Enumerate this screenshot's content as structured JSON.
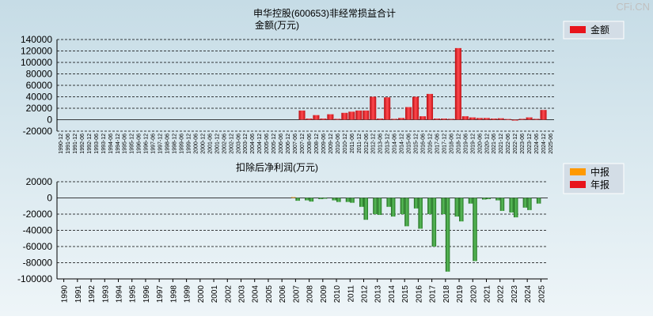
{
  "watermark": "CFi.CN",
  "colors": {
    "red": "#e8141c",
    "green": "#2e8b2e",
    "orange": "#ff9900"
  },
  "chart_data": [
    {
      "type": "bar",
      "title": "申华控股(600653)非经常损益合计",
      "ylabel": "金额(万元)",
      "ylim": [
        -20000,
        140000
      ],
      "yticks": [
        "140000",
        "120000",
        "100000",
        "80000",
        "60000",
        "40000",
        "20000",
        "0",
        "-20000"
      ],
      "legend": [
        {
          "name": "金额",
          "color": "#e8141c"
        }
      ],
      "categories": [
        "1990-12",
        "1991-06",
        "1991-12",
        "1992-06",
        "1992-12",
        "1993-06",
        "1993-12",
        "1994-06",
        "1994-12",
        "1995-06",
        "1995-12",
        "1996-06",
        "1996-12",
        "1997-06",
        "1997-12",
        "1998-06",
        "1998-12",
        "1999-06",
        "1999-12",
        "2000-06",
        "2000-12",
        "2001-06",
        "2001-12",
        "2002-06",
        "2002-12",
        "2003-06",
        "2003-12",
        "2004-06",
        "2004-12",
        "2005-06",
        "2005-12",
        "2006-06",
        "2006-12",
        "2007-06",
        "2007-12",
        "2008-06",
        "2008-12",
        "2009-06",
        "2009-12",
        "2010-06",
        "2010-12",
        "2011-06",
        "2011-12",
        "2012-06",
        "2012-12",
        "2013-06",
        "2013-12",
        "2014-06",
        "2014-12",
        "2015-06",
        "2015-12",
        "2016-06",
        "2016-12",
        "2017-06",
        "2017-12",
        "2018-06",
        "2018-12",
        "2019-06",
        "2019-12",
        "2020-06",
        "2020-12",
        "2021-06",
        "2021-12",
        "2022-06",
        "2022-12",
        "2023-06",
        "2023-12",
        "2024-06",
        "2024-12",
        "2025-06"
      ],
      "values": [
        0,
        0,
        0,
        0,
        0,
        0,
        0,
        0,
        0,
        0,
        0,
        0,
        0,
        0,
        0,
        0,
        0,
        0,
        0,
        0,
        0,
        0,
        0,
        0,
        0,
        0,
        0,
        0,
        0,
        0,
        0,
        0,
        0,
        0,
        16000,
        2000,
        8000,
        2000,
        9500,
        1500,
        12000,
        14000,
        16000,
        16000,
        40000,
        2000,
        39000,
        1500,
        3000,
        22000,
        40000,
        6000,
        45000,
        2000,
        2000,
        1500,
        125000,
        6000,
        4000,
        3000,
        3000,
        2000,
        2500,
        1200,
        -1500,
        1500,
        4000,
        1500,
        17000,
        0
      ]
    },
    {
      "type": "bar",
      "title": "扣除后净利润(万元)",
      "ylim": [
        -100000,
        20000
      ],
      "yticks": [
        "20000",
        "0",
        "-20000",
        "-40000",
        "-60000",
        "-80000",
        "-100000"
      ],
      "legend": [
        {
          "name": "中报",
          "color": "#ff9900"
        },
        {
          "name": "年报",
          "color": "#e8141c"
        }
      ],
      "categories": [
        "1990",
        "1991",
        "1992",
        "1993",
        "1994",
        "1995",
        "1996",
        "1997",
        "1998",
        "1999",
        "2000",
        "2001",
        "2002",
        "2003",
        "2004",
        "2005",
        "2006",
        "2007",
        "2008",
        "2009",
        "2010",
        "2011",
        "2012",
        "2013",
        "2014",
        "2015",
        "2016",
        "2017",
        "2018",
        "2019",
        "2020",
        "2021",
        "2022",
        "2023",
        "2024",
        "2025"
      ],
      "series": [
        {
          "name": "中报",
          "values": [
            null,
            null,
            null,
            null,
            null,
            null,
            null,
            null,
            null,
            null,
            null,
            null,
            null,
            null,
            null,
            null,
            null,
            1000,
            -3000,
            -1500,
            -3000,
            -5000,
            -11000,
            -20000,
            -11000,
            -20000,
            -13000,
            -20000,
            -20000,
            -23000,
            -7000,
            -2000,
            -3000,
            -18000,
            -12000,
            -7000
          ]
        },
        {
          "name": "年报",
          "values": [
            null,
            null,
            null,
            null,
            null,
            null,
            null,
            null,
            null,
            null,
            null,
            null,
            null,
            null,
            null,
            null,
            null,
            -3500,
            -4500,
            -1000,
            -5000,
            -6000,
            -27000,
            -21000,
            -23000,
            -35000,
            -38000,
            -60000,
            -91000,
            -29000,
            -78000,
            -1500,
            -16000,
            -24000,
            -15000,
            null
          ]
        }
      ]
    }
  ]
}
